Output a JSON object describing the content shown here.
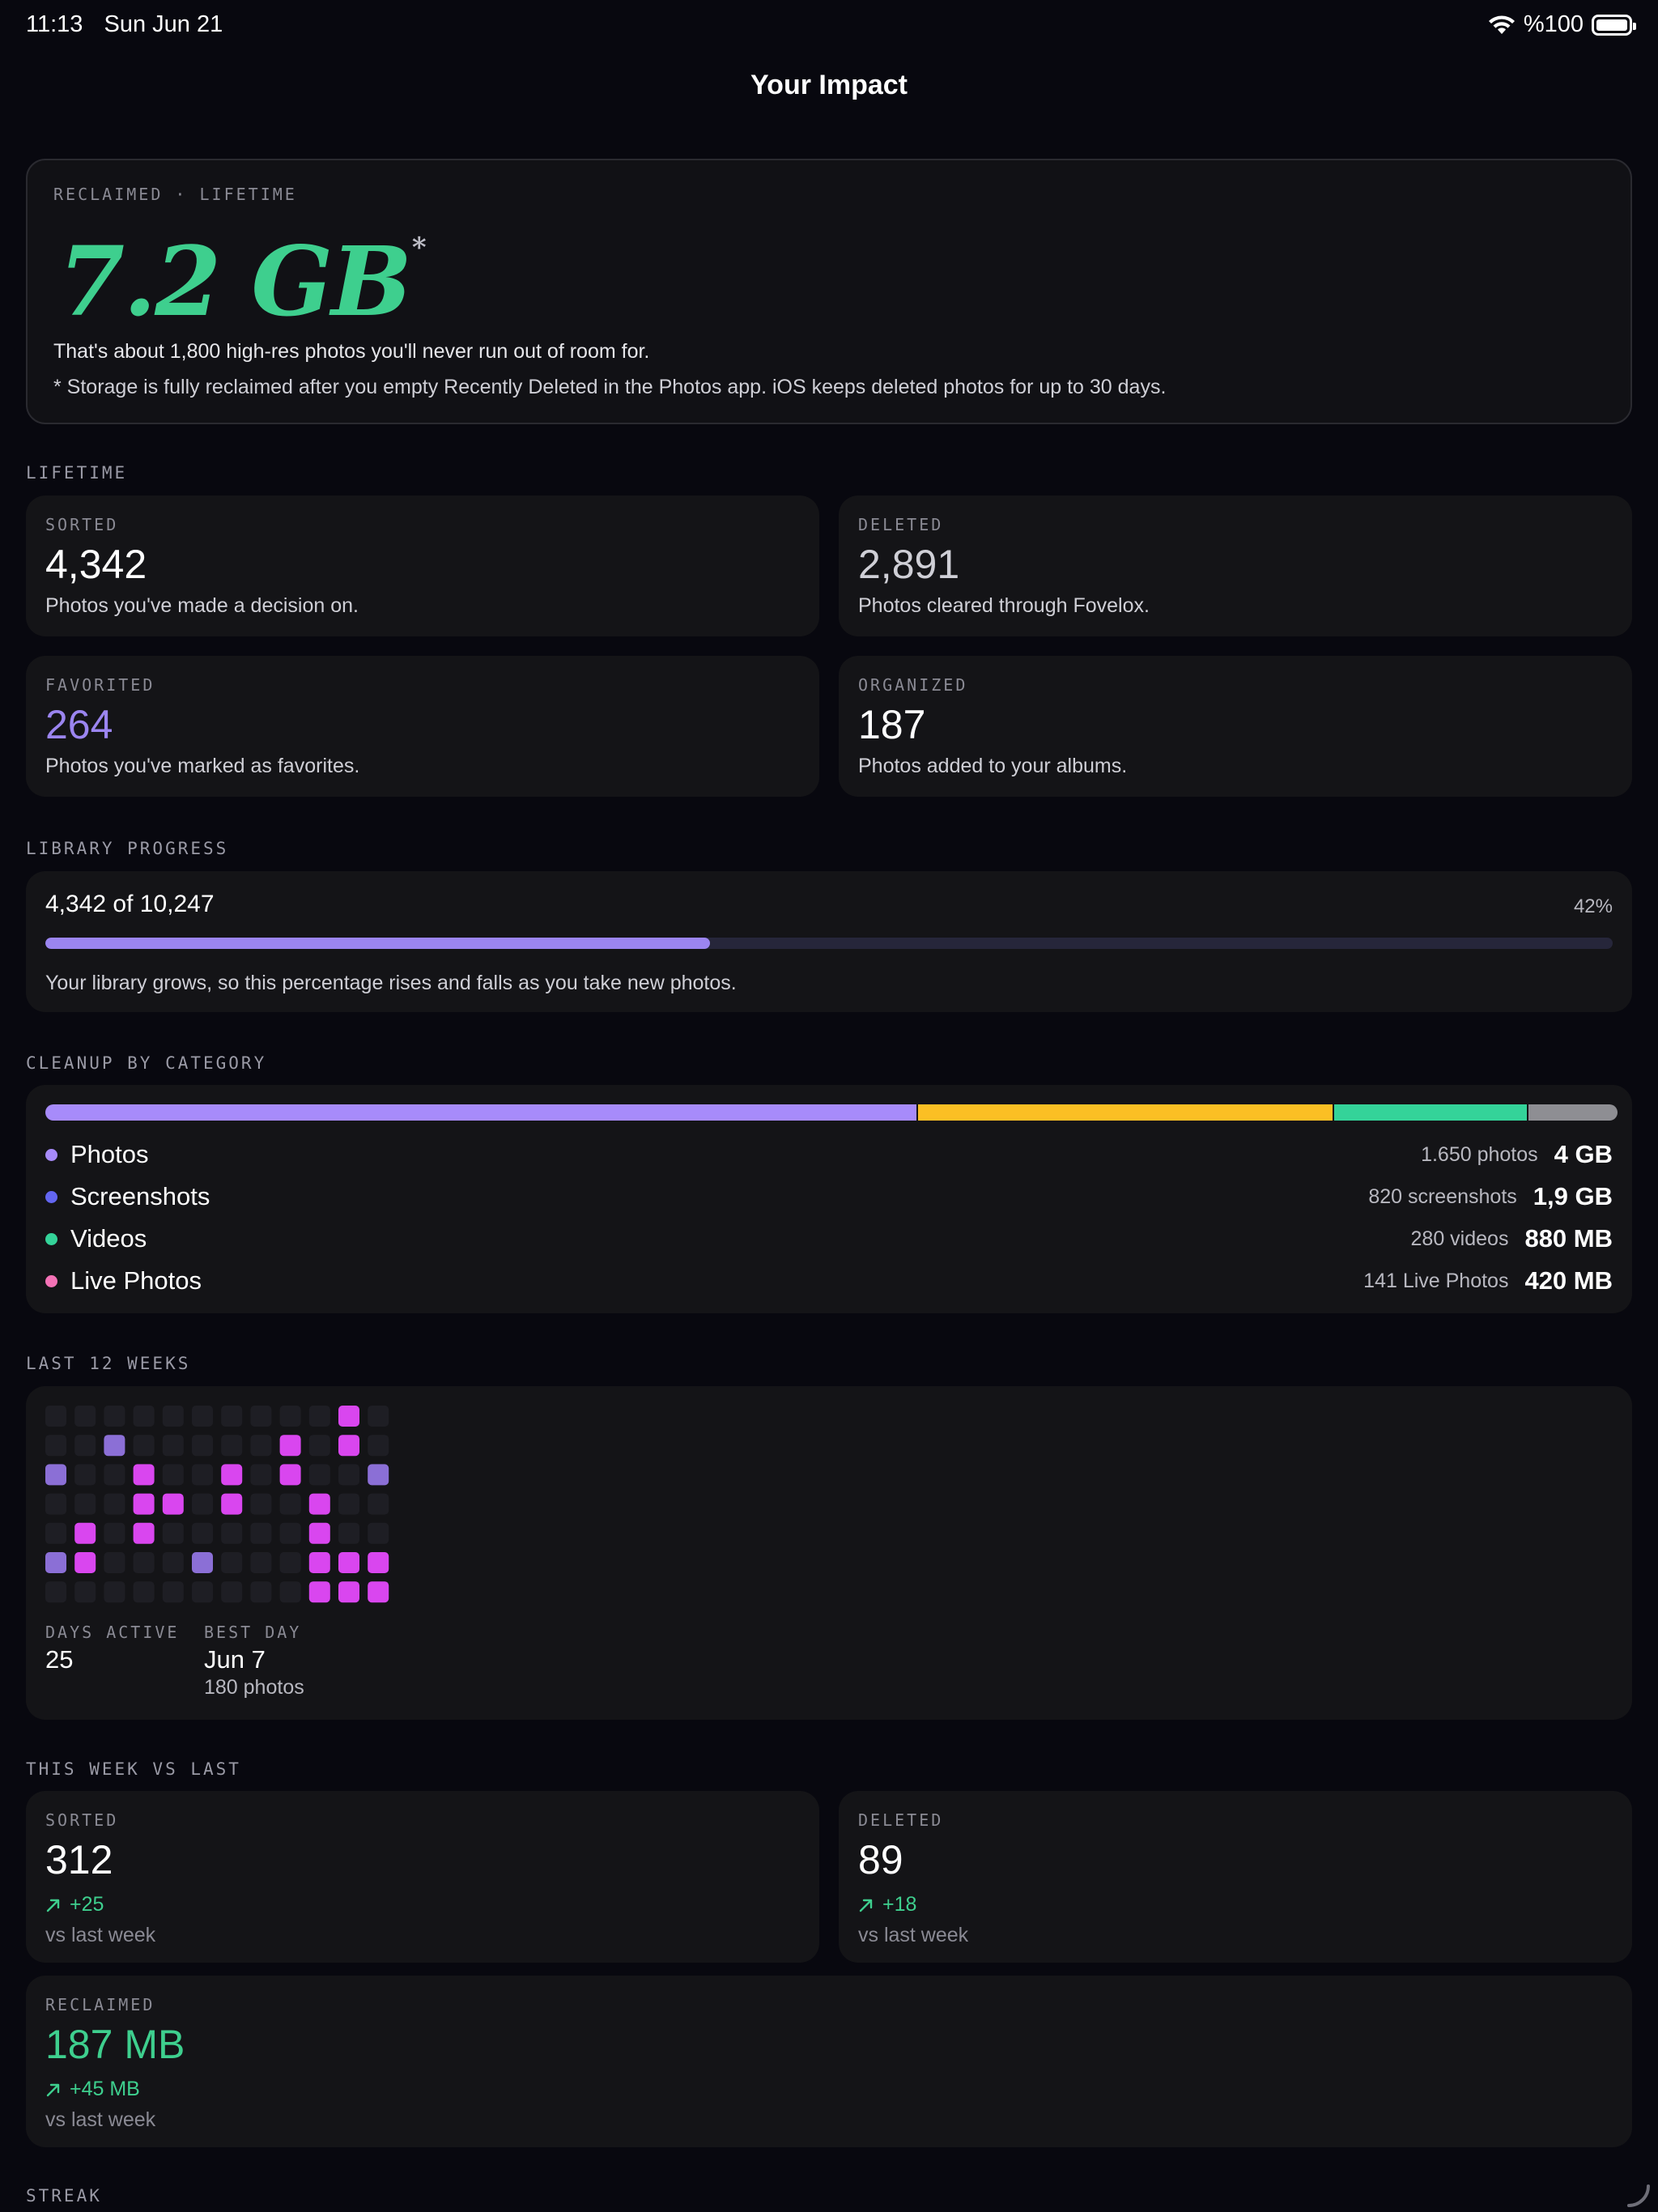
{
  "status_bar": {
    "time": "11:13",
    "date": "Sun Jun 21",
    "battery": "%100"
  },
  "nav": {
    "title": "Your Impact"
  },
  "hero": {
    "kicker": "RECLAIMED · LIFETIME",
    "value": "7.2 GB",
    "asterisk": "*",
    "line1": "That's about 1,800 high-res photos you'll never run out of room for.",
    "note": "* Storage is fully reclaimed after you empty Recently Deleted in the Photos app. iOS keeps deleted photos for up to 30 days."
  },
  "lifetime": {
    "label": "LIFETIME",
    "cards": [
      {
        "kicker": "SORTED",
        "value": "4,342",
        "desc": "Photos you've made a decision on."
      },
      {
        "kicker": "DELETED",
        "value": "2,891",
        "desc": "Photos cleared through Fovelox."
      },
      {
        "kicker": "FAVORITED",
        "value": "264",
        "desc": "Photos you've marked as favorites."
      },
      {
        "kicker": "ORGANIZED",
        "value": "187",
        "desc": "Photos added to your albums."
      }
    ]
  },
  "progress": {
    "label": "LIBRARY PROGRESS",
    "headline": "4,342 of 10,247",
    "percent_text": "42%",
    "fraction": 0.424,
    "note": "Your library grows, so this percentage rises and falls as you take new photos."
  },
  "cleanup": {
    "label": "CLEANUP BY CATEGORY",
    "segments": [
      {
        "color": "#a78bfa",
        "share": 0.556
      },
      {
        "color": "#fbbf24",
        "share": 0.264
      },
      {
        "color": "#34d399",
        "share": 0.123
      },
      {
        "color": "#8e8e93",
        "share": 0.057
      }
    ],
    "rows": [
      {
        "name": "Photos",
        "count": "1.650 photos",
        "size": "4 GB",
        "color": "#a78bfa"
      },
      {
        "name": "Screenshots",
        "count": "820 screenshots",
        "size": "1,9 GB",
        "color": "#6366f1"
      },
      {
        "name": "Videos",
        "count": "280 videos",
        "size": "880 MB",
        "color": "#34d399"
      },
      {
        "name": "Live Photos",
        "count": "141 Live Photos",
        "size": "420 MB",
        "color": "#f472b6"
      }
    ]
  },
  "weeks": {
    "label": "LAST 12 WEEKS",
    "colors": {
      "empty": "#1e1e24",
      "low": "#8b6fd6",
      "high": "#d946ef"
    },
    "grid": [
      [
        0,
        0,
        0,
        0,
        0,
        0,
        0,
        0,
        0,
        0,
        2,
        0
      ],
      [
        0,
        0,
        1,
        0,
        0,
        0,
        0,
        0,
        2,
        0,
        2,
        0
      ],
      [
        1,
        0,
        0,
        2,
        0,
        0,
        2,
        0,
        2,
        0,
        0,
        1
      ],
      [
        0,
        0,
        0,
        2,
        2,
        0,
        2,
        0,
        0,
        2,
        0,
        0
      ],
      [
        0,
        2,
        0,
        2,
        0,
        0,
        0,
        0,
        0,
        2,
        0,
        0
      ],
      [
        1,
        2,
        0,
        0,
        0,
        1,
        0,
        0,
        0,
        2,
        2,
        2
      ],
      [
        0,
        0,
        0,
        0,
        0,
        0,
        0,
        0,
        0,
        2,
        2,
        2
      ]
    ],
    "days_active_label": "DAYS ACTIVE",
    "days_active": "25",
    "best_day_label": "BEST DAY",
    "best_day": "Jun 7",
    "best_day_sub": "180 photos"
  },
  "this_week": {
    "label": "THIS WEEK VS LAST",
    "cards": [
      {
        "kicker": "SORTED",
        "value": "312",
        "delta": "+25",
        "vs": "vs last week"
      },
      {
        "kicker": "DELETED",
        "value": "89",
        "delta": "+18",
        "vs": "vs last week"
      },
      {
        "kicker": "RECLAIMED",
        "value": "187 MB",
        "delta": "+45 MB",
        "vs": "vs last week"
      }
    ]
  },
  "streak": {
    "label": "STREAK"
  }
}
